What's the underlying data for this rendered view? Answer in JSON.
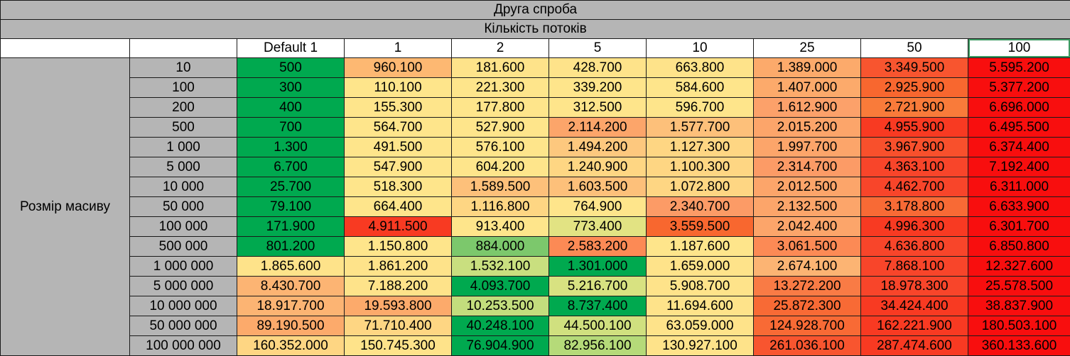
{
  "title": "Друга спроба",
  "subtitle": "Кількість потоків",
  "row_axis_label": "Розмір масиву",
  "columns": [
    "Default 1",
    "1",
    "2",
    "5",
    "10",
    "25",
    "50",
    "100"
  ],
  "rows": [
    {
      "size": "10",
      "values": [
        "500",
        "960.100",
        "181.600",
        "428.700",
        "663.800",
        "1.389.000",
        "3.349.500",
        "5.595.200"
      ],
      "colors": [
        "#00a94f",
        "#fdb872",
        "#fee38a",
        "#fee38a",
        "#fee38a",
        "#fcaa6b",
        "#f8552f",
        "#f80e0e"
      ]
    },
    {
      "size": "100",
      "values": [
        "300",
        "110.100",
        "221.300",
        "339.200",
        "584.600",
        "1.407.000",
        "2.925.900",
        "5.377.200"
      ],
      "colors": [
        "#00a94f",
        "#fee58b",
        "#fee58b",
        "#fee58b",
        "#fee58b",
        "#fcaa6b",
        "#f8672f",
        "#f80e0e"
      ]
    },
    {
      "size": "200",
      "values": [
        "400",
        "155.300",
        "177.800",
        "312.500",
        "596.700",
        "1.612.900",
        "2.721.900",
        "6.696.000"
      ],
      "colors": [
        "#00a94f",
        "#fee58b",
        "#fee58b",
        "#fee58b",
        "#fee58b",
        "#fca16a",
        "#f97b3a",
        "#f80e0e"
      ]
    },
    {
      "size": "500",
      "values": [
        "700",
        "564.700",
        "527.900",
        "2.114.200",
        "1.577.700",
        "2.015.200",
        "4.955.900",
        "6.495.500"
      ],
      "colors": [
        "#00a94f",
        "#fee58b",
        "#fee58b",
        "#fca56a",
        "#fdc07a",
        "#fca56a",
        "#f83a22",
        "#f80e0e"
      ]
    },
    {
      "size": "1 000",
      "values": [
        "1.300",
        "491.500",
        "576.100",
        "1.494.200",
        "1.127.300",
        "1.997.700",
        "3.967.900",
        "6.374.400"
      ],
      "colors": [
        "#00a94f",
        "#fee58b",
        "#fee58b",
        "#fdc87e",
        "#fed683",
        "#fca56a",
        "#f8502c",
        "#f80e0e"
      ]
    },
    {
      "size": "5 000",
      "values": [
        "6.700",
        "547.900",
        "604.200",
        "1.240.900",
        "1.100.300",
        "2.314.700",
        "4.363.100",
        "7.192.400"
      ],
      "colors": [
        "#00a94f",
        "#fee58b",
        "#fee58b",
        "#fed683",
        "#fed683",
        "#fc9b66",
        "#f8452a",
        "#f80e0e"
      ]
    },
    {
      "size": "10 000",
      "values": [
        "25.700",
        "518.300",
        "1.589.500",
        "1.603.500",
        "1.072.800",
        "2.012.500",
        "4.462.700",
        "6.311.000"
      ],
      "colors": [
        "#00a94f",
        "#fee58b",
        "#fdc07a",
        "#fdc07a",
        "#fed683",
        "#fca56a",
        "#f8452a",
        "#f80e0e"
      ]
    },
    {
      "size": "50 000",
      "values": [
        "79.100",
        "664.400",
        "1.116.800",
        "764.900",
        "2.340.700",
        "2.132.500",
        "3.178.800",
        "6.633.900"
      ],
      "colors": [
        "#00a94f",
        "#fee58b",
        "#fed683",
        "#fee58b",
        "#fc9b66",
        "#fca56a",
        "#f86a35",
        "#f80e0e"
      ]
    },
    {
      "size": "100 000",
      "values": [
        "171.900",
        "4.911.500",
        "913.400",
        "773.400",
        "3.559.500",
        "2.042.400",
        "4.996.300",
        "6.301.700"
      ],
      "colors": [
        "#00a94f",
        "#f83a22",
        "#fee58b",
        "#e2e383",
        "#f8672f",
        "#fca56a",
        "#f83a22",
        "#f80e0e"
      ]
    },
    {
      "size": "500 000",
      "values": [
        "801.200",
        "1.150.800",
        "884.000",
        "2.583.200",
        "1.187.600",
        "3.061.500",
        "4.636.800",
        "6.850.800"
      ],
      "colors": [
        "#00a94f",
        "#fee58b",
        "#7cc86c",
        "#fc8a55",
        "#fee58b",
        "#fc8a55",
        "#f8452a",
        "#f80e0e"
      ]
    },
    {
      "size": "1 000 000",
      "values": [
        "1.865.600",
        "1.861.200",
        "1.532.100",
        "1.301.000",
        "1.659.000",
        "2.674.100",
        "7.868.100",
        "12.327.600"
      ],
      "colors": [
        "#fee38a",
        "#fee38a",
        "#c9df7f",
        "#00a94f",
        "#fee38a",
        "#fcb473",
        "#f8452a",
        "#f80e0e"
      ]
    },
    {
      "size": "5 000 000",
      "values": [
        "8.430.700",
        "7.188.200",
        "4.093.700",
        "5.216.700",
        "5.908.700",
        "13.272.200",
        "18.978.300",
        "25.578.500"
      ],
      "colors": [
        "#fcb473",
        "#fee38a",
        "#00a94f",
        "#d8e281",
        "#fee38a",
        "#f97b45",
        "#f8452a",
        "#f80e0e"
      ]
    },
    {
      "size": "10 000 000",
      "values": [
        "18.917.700",
        "19.593.800",
        "10.253.500",
        "8.737.400",
        "11.694.600",
        "25.872.300",
        "34.424.400",
        "38.837.900"
      ],
      "colors": [
        "#fcb473",
        "#fcaa6b",
        "#c3dd7d",
        "#00a94f",
        "#fee38a",
        "#f86a35",
        "#f83a22",
        "#f80e0e"
      ]
    },
    {
      "size": "50 000 000",
      "values": [
        "89.190.500",
        "71.710.400",
        "40.248.100",
        "44.500.100",
        "63.059.000",
        "124.928.700",
        "162.221.900",
        "180.503.100"
      ],
      "colors": [
        "#fcaa6b",
        "#fed683",
        "#00a94f",
        "#d0e07f",
        "#fee38a",
        "#f86a35",
        "#f83a22",
        "#f80e0e"
      ]
    },
    {
      "size": "100 000 000",
      "values": [
        "160.352.000",
        "150.745.300",
        "76.904.900",
        "82.956.100",
        "130.927.100",
        "261.036.100",
        "287.474.600",
        "360.133.600"
      ],
      "colors": [
        "#fed683",
        "#fee38a",
        "#00a94f",
        "#b5da79",
        "#fee38a",
        "#f8552f",
        "#f83a22",
        "#f80e0e"
      ]
    }
  ]
}
